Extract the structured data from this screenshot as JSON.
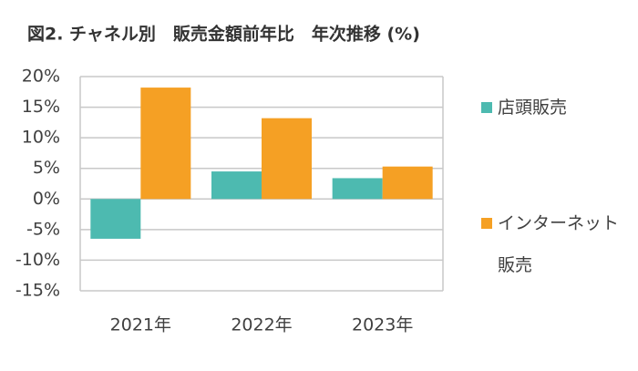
{
  "chart_data": {
    "type": "bar",
    "title": "図2. チャネル別　販売金額前年比　年次推移 (%)",
    "categories": [
      "2021年",
      "2022年",
      "2023年"
    ],
    "series": [
      {
        "name": "店頭販売",
        "color": "#4dbab0",
        "values": [
          -6.5,
          4.5,
          3.4
        ]
      },
      {
        "name": "インターネット販売",
        "color": "#f5a024",
        "values": [
          18.2,
          13.2,
          5.3
        ]
      }
    ],
    "ylim": [
      -15,
      20
    ],
    "yticks": [
      {
        "value": -15,
        "label": "-15%"
      },
      {
        "value": -10,
        "label": "-10%"
      },
      {
        "value": -5,
        "label": "-5%"
      },
      {
        "value": 0,
        "label": "0%"
      },
      {
        "value": 5,
        "label": "5%"
      },
      {
        "value": 10,
        "label": "10%"
      },
      {
        "value": 15,
        "label": "15%"
      },
      {
        "value": 20,
        "label": "20%"
      }
    ],
    "grid": true,
    "legend": "right"
  }
}
